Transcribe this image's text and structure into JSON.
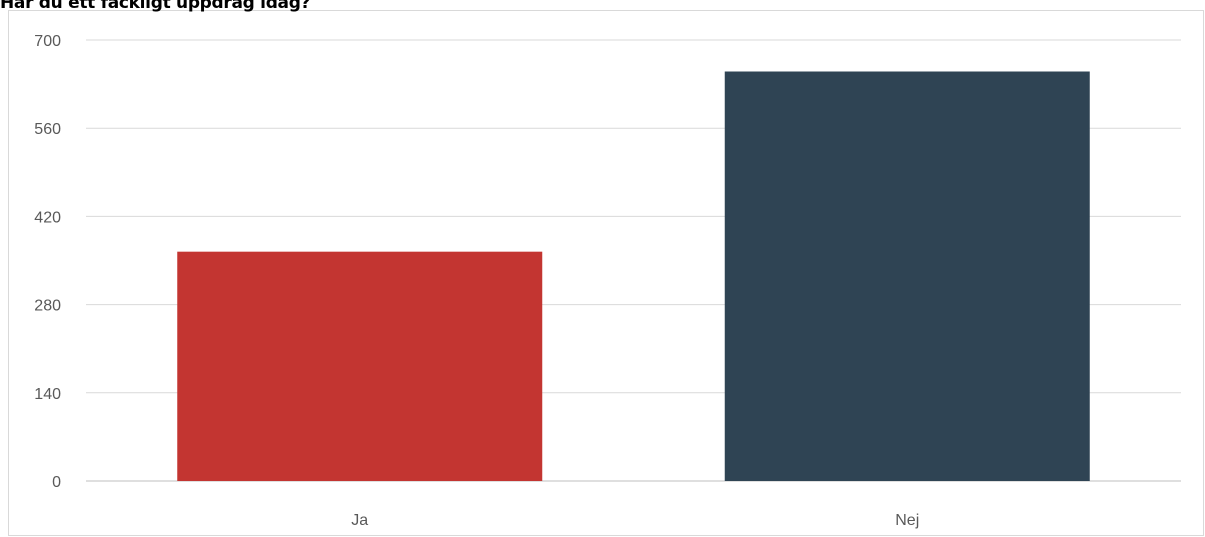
{
  "chart_data": {
    "type": "bar",
    "title": "Har du ett fackligt uppdrag idag?",
    "xlabel": "",
    "ylabel": "",
    "categories": [
      "Ja",
      "Nej"
    ],
    "values": [
      364,
      650
    ],
    "bar_colors": [
      "#c33531",
      "#2f4454"
    ],
    "ylim": [
      0,
      700
    ],
    "yticks": [
      "0",
      "140",
      "280",
      "420",
      "560",
      "700"
    ],
    "grid": true,
    "legend": "none"
  }
}
